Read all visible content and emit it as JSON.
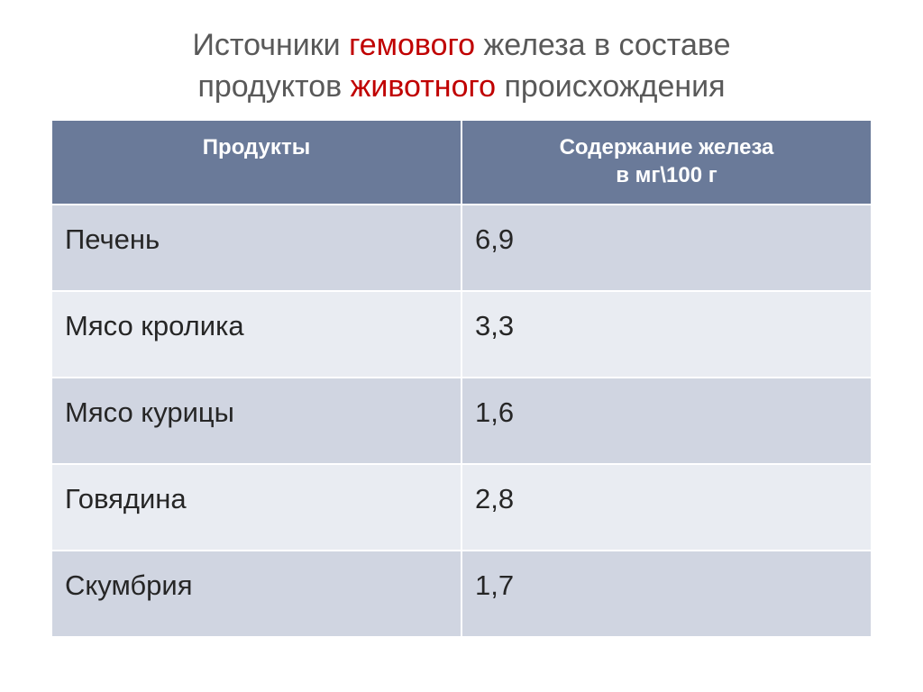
{
  "title": {
    "parts": [
      {
        "text": "Источники ",
        "color": "#595959"
      },
      {
        "text": "гемового",
        "color": "#c00000"
      },
      {
        "text": " железа в составе",
        "color": "#595959"
      },
      {
        "text": "\n",
        "color": "#595959"
      },
      {
        "text": "продуктов    ",
        "color": "#595959"
      },
      {
        "text": "животного",
        "color": "#c00000"
      },
      {
        "text": " происхождения",
        "color": "#595959"
      }
    ]
  },
  "table": {
    "header_bg": "#6a7a99",
    "header_fg": "#ffffff",
    "row_bg_odd": "#d0d5e1",
    "row_bg_even": "#e9ecf2",
    "cell_fg": "#262626",
    "border_color": "#ffffff",
    "columns": [
      "Продукты",
      "Содержание железа\nв   мг\\100 г"
    ],
    "rows": [
      [
        "Печень",
        "6,9"
      ],
      [
        "Мясо кролика",
        "3,3"
      ],
      [
        "Мясо курицы",
        "1,6"
      ],
      [
        "Говядина",
        "2,8"
      ],
      [
        "Скумбрия",
        "1,7"
      ]
    ]
  }
}
